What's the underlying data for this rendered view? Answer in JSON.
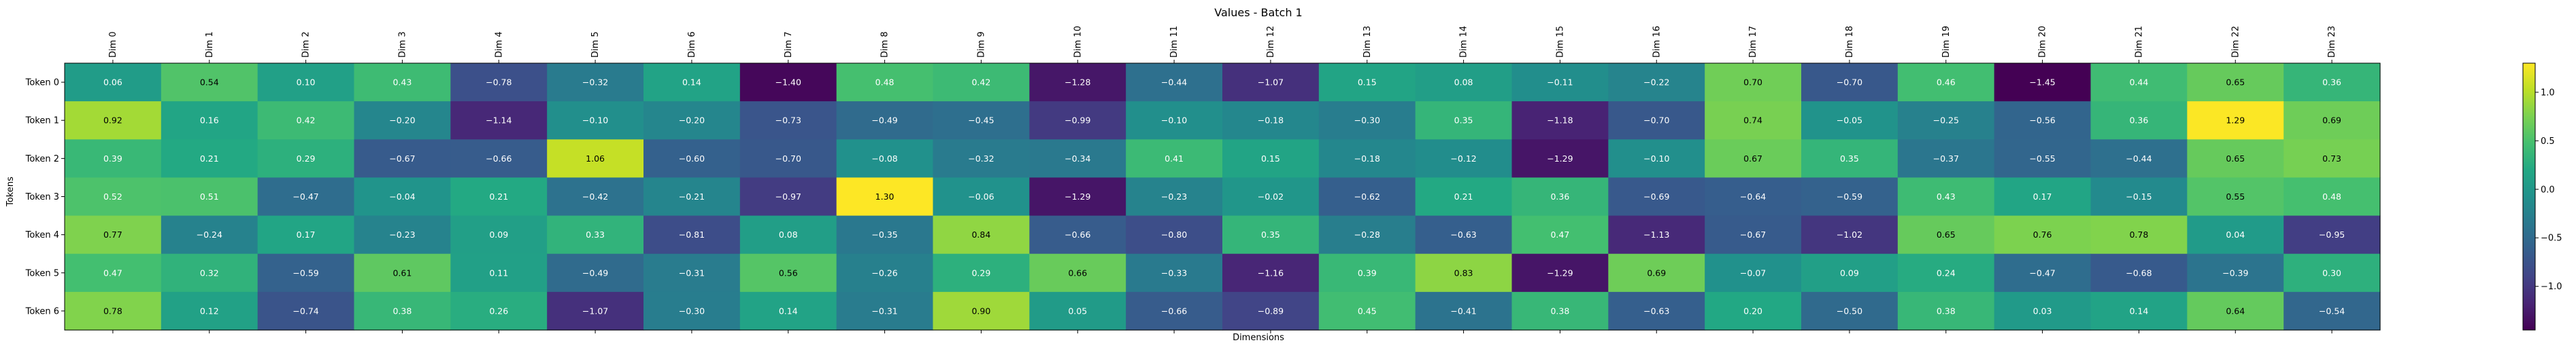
{
  "chart_data": {
    "type": "heatmap",
    "title": "Values - Batch 1",
    "xlabel": "Dimensions",
    "ylabel": "Tokens",
    "x_labels": [
      "Dim 0",
      "Dim 1",
      "Dim 2",
      "Dim 3",
      "Dim 4",
      "Dim 5",
      "Dim 6",
      "Dim 7",
      "Dim 8",
      "Dim 9",
      "Dim 10",
      "Dim 11",
      "Dim 12",
      "Dim 13",
      "Dim 14",
      "Dim 15",
      "Dim 16",
      "Dim 17",
      "Dim 18",
      "Dim 19",
      "Dim 20",
      "Dim 21",
      "Dim 22",
      "Dim 23"
    ],
    "y_labels": [
      "Token 0",
      "Token 1",
      "Token 2",
      "Token 3",
      "Token 4",
      "Token 5",
      "Token 6"
    ],
    "values": [
      [
        0.06,
        0.54,
        0.1,
        0.43,
        -0.78,
        -0.32,
        0.14,
        -1.4,
        0.48,
        0.42,
        -1.28,
        -0.44,
        -1.07,
        0.15,
        0.08,
        -0.11,
        -0.22,
        0.7,
        -0.7,
        0.46,
        -1.45,
        0.44,
        0.65,
        0.36
      ],
      [
        0.92,
        0.16,
        0.42,
        -0.2,
        -1.14,
        -0.1,
        -0.2,
        -0.73,
        -0.49,
        -0.45,
        -0.99,
        -0.1,
        -0.18,
        -0.3,
        0.35,
        -1.18,
        -0.7,
        0.74,
        -0.05,
        -0.25,
        -0.56,
        0.36,
        1.29,
        0.69
      ],
      [
        0.39,
        0.21,
        0.29,
        -0.67,
        -0.66,
        1.06,
        -0.6,
        -0.7,
        -0.08,
        -0.32,
        -0.34,
        0.41,
        0.15,
        -0.18,
        -0.12,
        -1.29,
        -0.1,
        0.67,
        0.35,
        -0.37,
        -0.55,
        -0.44,
        0.65,
        0.73
      ],
      [
        0.52,
        0.51,
        -0.47,
        -0.04,
        0.21,
        -0.42,
        -0.21,
        -0.97,
        1.3,
        -0.06,
        -1.29,
        -0.23,
        -0.02,
        -0.62,
        0.21,
        0.36,
        -0.69,
        -0.64,
        -0.59,
        0.43,
        0.17,
        -0.15,
        0.55,
        0.48
      ],
      [
        0.77,
        -0.24,
        0.17,
        -0.23,
        0.09,
        0.33,
        -0.81,
        0.08,
        -0.35,
        0.84,
        -0.66,
        -0.8,
        0.35,
        -0.28,
        -0.63,
        0.47,
        -1.13,
        -0.67,
        -1.02,
        0.65,
        0.76,
        0.78,
        0.04,
        -0.95
      ],
      [
        0.47,
        0.32,
        -0.59,
        0.61,
        0.11,
        -0.49,
        -0.31,
        0.56,
        -0.26,
        0.29,
        0.66,
        -0.33,
        -1.16,
        0.39,
        0.83,
        -1.29,
        0.69,
        -0.07,
        0.09,
        0.24,
        -0.47,
        -0.68,
        -0.39,
        0.3
      ],
      [
        0.78,
        0.12,
        -0.74,
        0.38,
        0.26,
        -1.07,
        -0.3,
        0.14,
        -0.31,
        0.9,
        0.05,
        -0.66,
        -0.89,
        0.45,
        -0.41,
        0.38,
        -0.63,
        0.2,
        -0.5,
        0.38,
        0.03,
        0.14,
        0.64,
        -0.54
      ]
    ],
    "value_range": [
      -1.45,
      1.3
    ],
    "colormap": "viridis",
    "colorbar": {
      "ticks": [
        1.0,
        0.5,
        0.0,
        -0.5,
        -1.0
      ],
      "tick_labels": [
        "1.0",
        "0.5",
        "0.0",
        "−0.5",
        "−1.0"
      ]
    },
    "grid": false,
    "legend": "colorbar-right"
  }
}
